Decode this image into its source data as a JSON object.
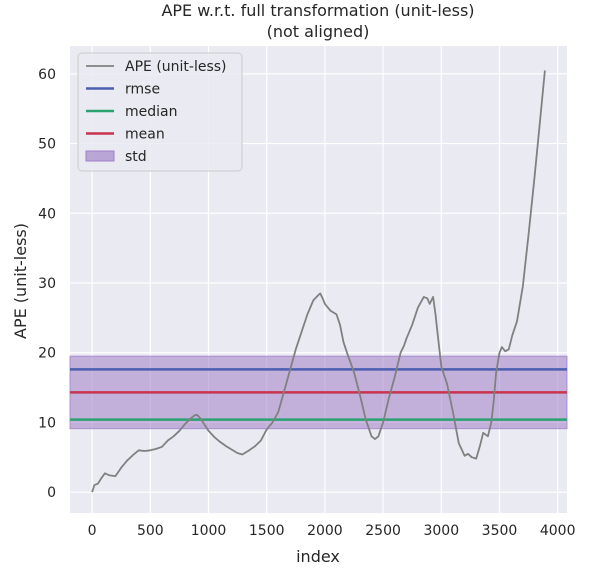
{
  "chart_data": {
    "type": "line",
    "title": "APE w.r.t. full transformation (unit-less)",
    "subtitle": "(not aligned)",
    "xlabel": "index",
    "ylabel": "APE (unit-less)",
    "xlim": [
      -190,
      4080
    ],
    "ylim": [
      -3,
      64
    ],
    "xticks": [
      "0",
      "500",
      "1000",
      "1500",
      "2000",
      "2500",
      "3000",
      "3500",
      "4000"
    ],
    "xtick_values": [
      0,
      500,
      1000,
      1500,
      2000,
      2500,
      3000,
      3500,
      4000
    ],
    "yticks": [
      "0",
      "10",
      "20",
      "30",
      "40",
      "50",
      "60"
    ],
    "ytick_values": [
      0,
      10,
      20,
      30,
      40,
      50,
      60
    ],
    "grid": true,
    "legend_position": "top-left",
    "series": [
      {
        "name": "APE (unit-less)",
        "color": "#808080",
        "x": [
          0,
          20,
          50,
          80,
          110,
          150,
          200,
          250,
          300,
          350,
          400,
          450,
          500,
          550,
          600,
          650,
          700,
          750,
          800,
          850,
          880,
          900,
          930,
          960,
          1000,
          1050,
          1100,
          1150,
          1200,
          1250,
          1290,
          1320,
          1350,
          1400,
          1450,
          1500,
          1550,
          1600,
          1650,
          1700,
          1750,
          1800,
          1850,
          1900,
          1940,
          1960,
          1980,
          2000,
          2050,
          2100,
          2130,
          2160,
          2200,
          2250,
          2300,
          2350,
          2400,
          2430,
          2460,
          2500,
          2550,
          2600,
          2650,
          2680,
          2700,
          2750,
          2800,
          2850,
          2880,
          2900,
          2930,
          2950,
          2970,
          3000,
          3050,
          3100,
          3150,
          3200,
          3230,
          3260,
          3300,
          3330,
          3360,
          3400,
          3430,
          3450,
          3470,
          3500,
          3520,
          3550,
          3580,
          3610,
          3650,
          3700,
          3750,
          3800,
          3850,
          3890
        ],
        "y": [
          0,
          1,
          1.2,
          2,
          2.7,
          2.4,
          2.3,
          3.5,
          4.5,
          5.3,
          6.0,
          5.9,
          6.0,
          6.2,
          6.5,
          7.4,
          8.0,
          8.8,
          9.8,
          10.6,
          11.0,
          11.1,
          10.6,
          9.8,
          8.8,
          7.9,
          7.2,
          6.6,
          6.1,
          5.6,
          5.4,
          5.7,
          6.0,
          6.6,
          7.4,
          9.0,
          10.0,
          11.5,
          14.5,
          17.5,
          20.5,
          23.0,
          25.5,
          27.5,
          28.2,
          28.5,
          27.8,
          27.0,
          26.0,
          25.5,
          24.0,
          21.5,
          19.5,
          17.2,
          14.0,
          10.5,
          8.0,
          7.6,
          8.0,
          10.0,
          13.5,
          16.5,
          20.0,
          21.0,
          22.0,
          24.0,
          26.5,
          28.0,
          27.8,
          27.0,
          28.0,
          25.5,
          22.5,
          18.0,
          15.5,
          11.5,
          7.0,
          5.2,
          5.5,
          5.0,
          4.8,
          6.5,
          8.5,
          8.0,
          10.0,
          13.0,
          17.0,
          20.0,
          20.8,
          20.2,
          20.5,
          22.5,
          24.5,
          29.5,
          37.0,
          45.0,
          53.5,
          60.5
        ]
      },
      {
        "name": "rmse",
        "color": "#4c5eb0",
        "value": 17.6
      },
      {
        "name": "median",
        "color": "#2aa371",
        "value": 10.4
      },
      {
        "name": "mean",
        "color": "#c8334f",
        "value": 14.3
      },
      {
        "name": "std",
        "color": "#a07fc8",
        "range": [
          9.1,
          19.5
        ]
      }
    ]
  }
}
